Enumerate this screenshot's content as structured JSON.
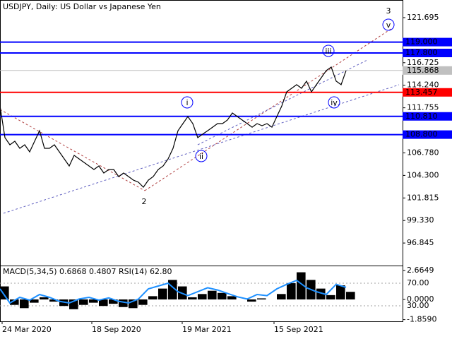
{
  "chart_data": [
    {
      "type": "line",
      "title": "USDJPY, Daily:  US Dollar vs Japanese Yen",
      "color": "#000000",
      "x": [
        0,
        7,
        14,
        21,
        28,
        35,
        42,
        49,
        56,
        63,
        70,
        77,
        84,
        91,
        98,
        105,
        112,
        119,
        126,
        133,
        140,
        147,
        154,
        161,
        168,
        175,
        182,
        189,
        196,
        203,
        210,
        217,
        224,
        231,
        238,
        245,
        252,
        259,
        266,
        273,
        280,
        287,
        294,
        301,
        308,
        315,
        322,
        329,
        336,
        343,
        350,
        357,
        364,
        371,
        378,
        385,
        392,
        399,
        406,
        413,
        420,
        427,
        434,
        441,
        448,
        455,
        462,
        469,
        476,
        483,
        490
      ],
      "values": [
        111.96,
        108.46,
        107.68,
        108.07,
        107.29,
        107.68,
        106.9,
        108.07,
        109.23,
        107.29,
        107.29,
        107.68,
        106.9,
        106.12,
        105.34,
        106.51,
        106.12,
        105.73,
        105.34,
        104.95,
        105.34,
        104.56,
        104.95,
        104.95,
        104.17,
        104.56,
        104.17,
        103.78,
        103.55,
        103.0,
        103.78,
        104.17,
        104.95,
        105.34,
        106.12,
        107.29,
        109.23,
        110.01,
        110.79,
        110.01,
        108.46,
        108.85,
        109.23,
        109.62,
        110.01,
        110.01,
        110.4,
        111.18,
        110.79,
        110.4,
        110.01,
        109.62,
        110.01,
        109.78,
        110.01,
        109.62,
        110.79,
        111.96,
        113.52,
        113.91,
        114.3,
        113.91,
        114.69,
        113.52,
        114.3,
        115.08,
        115.86,
        116.25,
        114.69,
        114.3,
        115.86
      ],
      "xlim": [
        0,
        570
      ],
      "xticks": [
        {
          "value": 3,
          "label": "24 Mar 2020"
        },
        {
          "value": 130,
          "label": "18 Sep 2020"
        },
        {
          "value": 258,
          "label": "19 Mar 2021"
        },
        {
          "value": 388,
          "label": "15 Sep 2021"
        }
      ],
      "ylim": [
        94.44,
        123.64
      ],
      "yticks": [
        121.695,
        116.725,
        {
          "value": 114.24,
          "label": "114.240"
        },
        111.755,
        {
          "value": 106.78,
          "label": "106.780"
        },
        {
          "value": 104.3,
          "label": "104.300"
        },
        101.815,
        {
          "value": 99.33,
          "label": "99.330"
        },
        96.845
      ],
      "levels": [
        {
          "value": 119,
          "label": "119.000",
          "color": "#0000ff"
        },
        {
          "value": 117.8,
          "label": "117.800",
          "color": "#0000ff"
        },
        {
          "value": 113.457,
          "label": "113.457",
          "color": "#ff0000"
        },
        {
          "value": 110.81,
          "label": "110.810",
          "color": "#0000ff"
        },
        {
          "value": 108.8,
          "label": "108.800",
          "color": "#0000ff"
        }
      ],
      "current_price": 115.868,
      "annotations": [
        "3",
        "2",
        "i",
        "ii",
        "iii",
        "iv",
        "v"
      ]
    },
    {
      "type": "macd",
      "title": "MACD(5,34,5) 0.6868 0.4807 RSI(14) 62.80",
      "x": [
        0,
        14,
        28,
        42,
        56,
        70,
        84,
        98,
        112,
        126,
        140,
        154,
        168,
        182,
        196,
        210,
        224,
        238,
        252,
        266,
        280,
        294,
        308,
        322,
        336,
        350,
        364,
        378,
        392,
        406,
        420,
        434,
        448,
        462,
        476,
        490
      ],
      "series": [
        {
          "name": "MACD(5,34,5)",
          "color": "#000000",
          "values": [
            1.2,
            -0.5,
            -0.8,
            -0.3,
            0.2,
            -0.2,
            -0.6,
            -0.9,
            -0.5,
            -0.3,
            -0.6,
            -0.4,
            -0.7,
            -0.8,
            -0.5,
            0.3,
            1.0,
            1.8,
            1.2,
            0.2,
            0.5,
            0.8,
            0.6,
            0.3,
            0.0,
            -0.2,
            0.1,
            0.0,
            0.5,
            1.5,
            2.5,
            1.8,
            1.0,
            0.4,
            1.3,
            0.7
          ]
        },
        {
          "name": "RSI(14)",
          "color": "#1e90ff",
          "axis": "y2",
          "values": [
            60,
            35,
            45,
            40,
            50,
            45,
            38,
            35,
            42,
            45,
            40,
            44,
            38,
            35,
            42,
            60,
            65,
            70,
            55,
            48,
            55,
            62,
            58,
            52,
            46,
            42,
            50,
            48,
            60,
            68,
            75,
            62,
            55,
            50,
            68,
            62.8
          ]
        }
      ],
      "xlim": [
        0,
        570
      ],
      "ylim": [
        -2.21,
        2.99
      ],
      "yticks": [
        2.6649,
        {
          "value": 0,
          "label": "0.0000"
        },
        {
          "value": -1.859,
          "label": "-1.8590"
        }
      ],
      "y2lim": [
        -1.25,
        98.75
      ],
      "y2ticks": [
        {
          "value": 70,
          "label": "70.00"
        },
        {
          "value": 30,
          "label": "30.00"
        }
      ]
    }
  ]
}
